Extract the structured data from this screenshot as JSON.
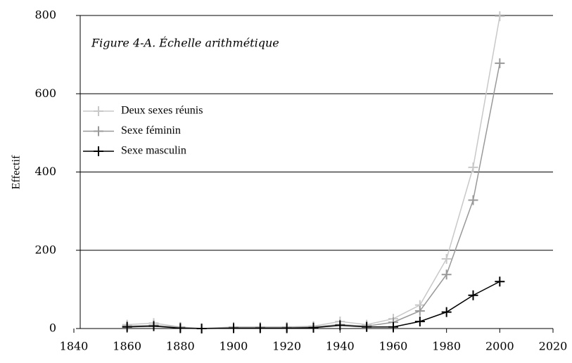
{
  "chart_data": {
    "type": "line",
    "title": "Figure 4-A. Échelle arithmétique",
    "y_label": "Effectif",
    "x": [
      1860,
      1870,
      1880,
      1888,
      1900,
      1910,
      1920,
      1930,
      1940,
      1950,
      1960,
      1970,
      1980,
      1990,
      2000
    ],
    "series": [
      {
        "name": "Deux sexes réunis",
        "color": "#c8c8c8",
        "values": [
          10,
          14,
          4,
          0,
          4,
          4,
          4,
          6,
          18,
          10,
          25,
          60,
          178,
          412,
          798
        ]
      },
      {
        "name": "Sexe féminin",
        "color": "#999999",
        "values": [
          6,
          8,
          3,
          0,
          3,
          3,
          3,
          4,
          10,
          6,
          16,
          45,
          138,
          328,
          678
        ]
      },
      {
        "name": "Sexe masculin",
        "color": "#000000",
        "values": [
          4,
          6,
          1,
          0,
          1,
          1,
          1,
          2,
          8,
          4,
          4,
          18,
          42,
          85,
          120
        ]
      }
    ],
    "xlim": [
      1840,
      2020
    ],
    "xticks": [
      1840,
      1860,
      1880,
      1900,
      1920,
      1940,
      1960,
      1980,
      2000,
      2020
    ],
    "ylim": [
      0,
      800
    ],
    "yticks": [
      0,
      200,
      400,
      600,
      800
    ],
    "grid": true,
    "legend": "upper left"
  }
}
